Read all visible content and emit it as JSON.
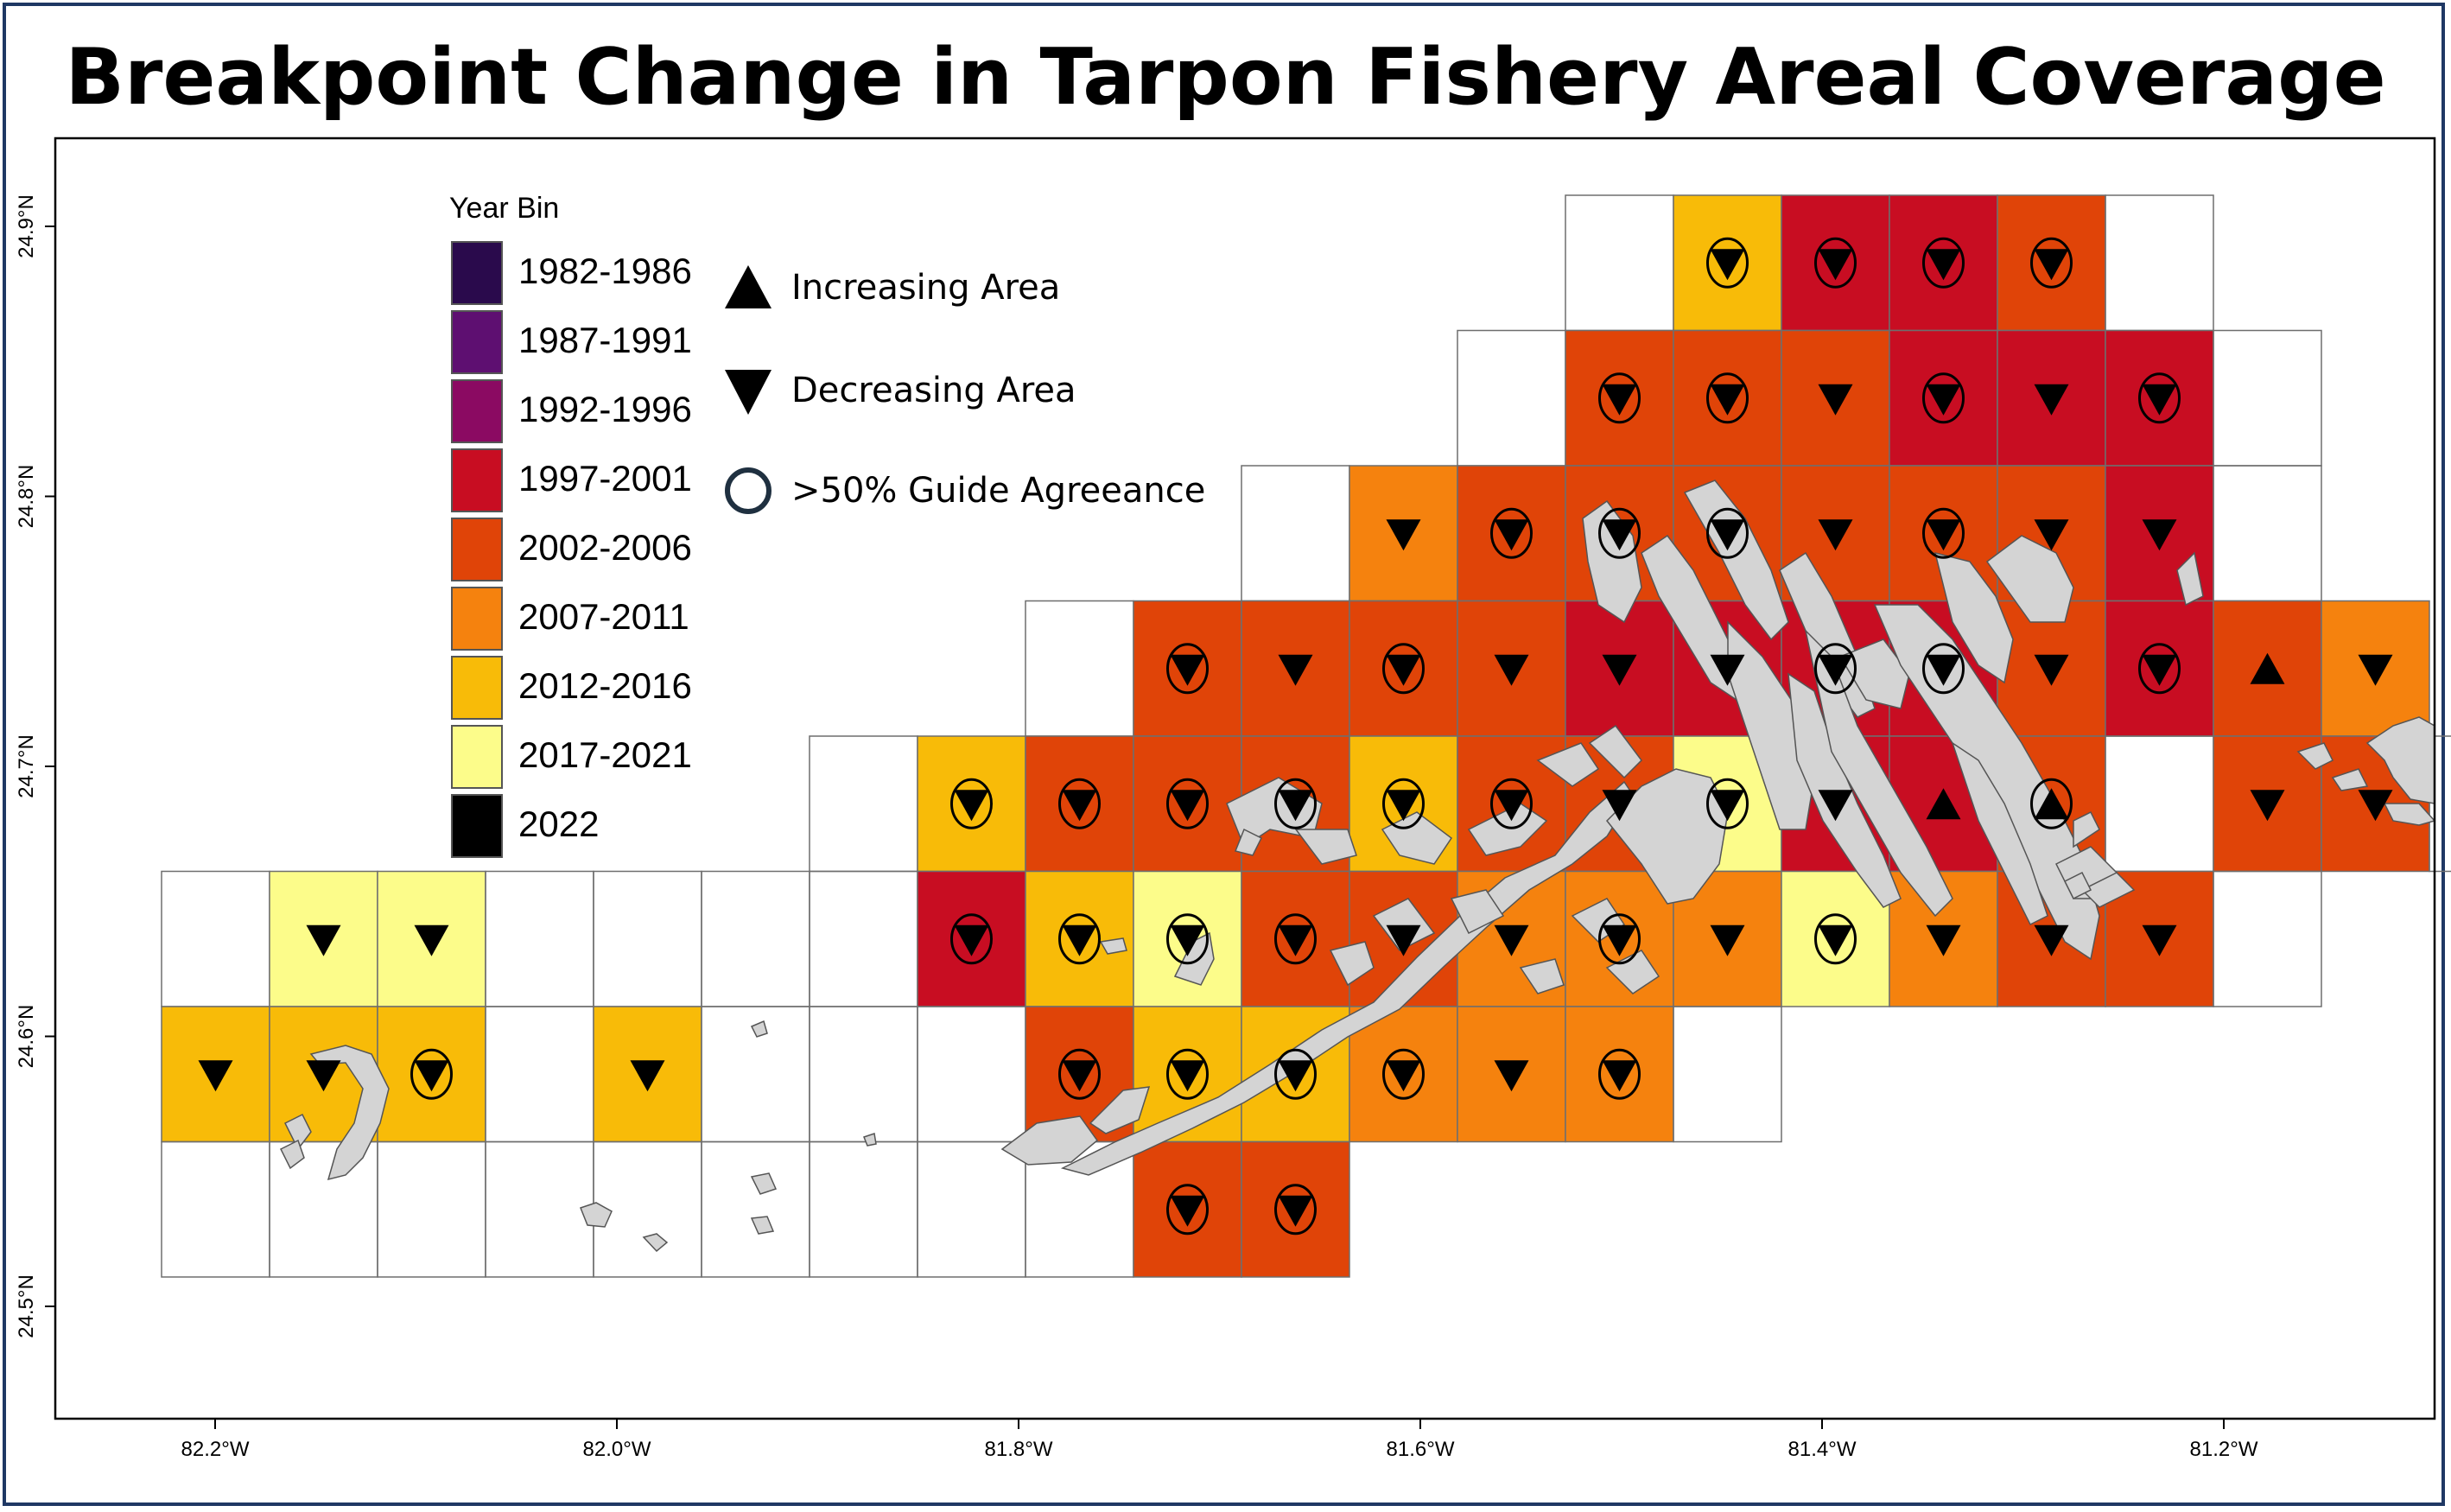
{
  "title": "Breakpoint Change in Tarpon Fishery Areal Coverage",
  "legend": {
    "title": "Year Bin",
    "bins": [
      {
        "label": "1982-1986",
        "color": "#2a0a4c"
      },
      {
        "label": "1987-1991",
        "color": "#5e0f71"
      },
      {
        "label": "1992-1996",
        "color": "#8b0a62"
      },
      {
        "label": "1997-2001",
        "color": "#c80d22"
      },
      {
        "label": "2002-2006",
        "color": "#e04408"
      },
      {
        "label": "2007-2011",
        "color": "#f5820e"
      },
      {
        "label": "2012-2016",
        "color": "#f8bb08"
      },
      {
        "label": "2017-2021",
        "color": "#fcfc8a"
      },
      {
        "label": "2022",
        "color": "#000000"
      }
    ],
    "symbols": [
      {
        "label": "Increasing Area",
        "icon": "triangle-up-icon"
      },
      {
        "label": "Decreasing Area",
        "icon": "triangle-down-icon"
      },
      {
        "label": ">50% Guide Agreeance",
        "icon": "circle-icon"
      }
    ]
  },
  "axes": {
    "x_ticks": [
      {
        "lon": -82.2,
        "label": "82.2°W"
      },
      {
        "lon": -82.0,
        "label": "82.0°W"
      },
      {
        "lon": -81.8,
        "label": "81.8°W"
      },
      {
        "lon": -81.6,
        "label": "81.6°W"
      },
      {
        "lon": -81.4,
        "label": "81.4°W"
      },
      {
        "lon": -81.2,
        "label": "81.2°W"
      }
    ],
    "y_ticks": [
      {
        "lat": 24.5,
        "label": "24.5°N"
      },
      {
        "lat": 24.6,
        "label": "24.6°N"
      },
      {
        "lat": 24.7,
        "label": "24.7°N"
      },
      {
        "lat": 24.8,
        "label": "24.8°N"
      },
      {
        "lat": 24.9,
        "label": "24.9°N"
      }
    ]
  },
  "grid": {
    "rows": [
      {
        "row": 0,
        "cells": [
          [
            13,
            "none",
            null,
            false
          ],
          [
            14,
            "2012-2016",
            "down",
            true
          ],
          [
            15,
            "1997-2001",
            "down",
            true
          ],
          [
            16,
            "1997-2001",
            "down",
            true
          ],
          [
            17,
            "2002-2006",
            "down",
            true
          ],
          [
            18,
            "none",
            null,
            false
          ]
        ]
      },
      {
        "row": 1,
        "cells": [
          [
            12,
            "none",
            null,
            false
          ],
          [
            13,
            "2002-2006",
            "down",
            true
          ],
          [
            14,
            "2002-2006",
            "down",
            true
          ],
          [
            15,
            "2002-2006",
            "down",
            false
          ],
          [
            16,
            "1997-2001",
            "down",
            true
          ],
          [
            17,
            "1997-2001",
            "down",
            false
          ],
          [
            18,
            "1997-2001",
            "down",
            true
          ],
          [
            19,
            "none",
            null,
            false
          ]
        ]
      },
      {
        "row": 2,
        "cells": [
          [
            10,
            "none",
            null,
            false
          ],
          [
            11,
            "2007-2011",
            "down",
            false
          ],
          [
            12,
            "2002-2006",
            "down",
            true
          ],
          [
            13,
            "2002-2006",
            "down",
            true
          ],
          [
            14,
            "2002-2006",
            "down",
            true
          ],
          [
            15,
            "2002-2006",
            "down",
            false
          ],
          [
            16,
            "2002-2006",
            "down",
            true
          ],
          [
            17,
            "2002-2006",
            "down",
            false
          ],
          [
            18,
            "1997-2001",
            "down",
            false
          ],
          [
            19,
            "none",
            null,
            false
          ]
        ]
      },
      {
        "row": 3,
        "cells": [
          [
            8,
            "none",
            null,
            false
          ],
          [
            9,
            "2002-2006",
            "down",
            true
          ],
          [
            10,
            "2002-2006",
            "down",
            false
          ],
          [
            11,
            "2002-2006",
            "down",
            true
          ],
          [
            12,
            "2002-2006",
            "down",
            false
          ],
          [
            13,
            "1997-2001",
            "down",
            false
          ],
          [
            14,
            "1997-2001",
            "down",
            false
          ],
          [
            15,
            "1997-2001",
            "down",
            true
          ],
          [
            16,
            "1997-2001",
            "down",
            true
          ],
          [
            17,
            "2002-2006",
            "down",
            false
          ],
          [
            18,
            "1997-2001",
            "down",
            true
          ],
          [
            19,
            "2002-2006",
            "up",
            false
          ],
          [
            20,
            "2007-2011",
            "down",
            false
          ]
        ]
      },
      {
        "row": 4,
        "cells": [
          [
            6,
            "none",
            null,
            false
          ],
          [
            7,
            "2012-2016",
            "down",
            true
          ],
          [
            8,
            "2002-2006",
            "down",
            true
          ],
          [
            9,
            "2002-2006",
            "down",
            true
          ],
          [
            10,
            "2002-2006",
            "down",
            true
          ],
          [
            11,
            "2012-2016",
            "down",
            true
          ],
          [
            12,
            "2002-2006",
            "down",
            true
          ],
          [
            13,
            "2002-2006",
            "down",
            false
          ],
          [
            14,
            "2017-2021",
            "down",
            true
          ],
          [
            15,
            "1997-2001",
            "down",
            false
          ],
          [
            16,
            "1997-2001",
            "up",
            false
          ],
          [
            17,
            "2002-2006",
            "up",
            true
          ],
          [
            18,
            "none",
            null,
            false
          ],
          [
            19,
            "2002-2006",
            "down",
            false
          ],
          [
            20,
            "2002-2006",
            "down",
            false
          ],
          [
            21,
            "none",
            null,
            false
          ]
        ]
      },
      {
        "row": 5,
        "cells": [
          [
            0,
            "none",
            null,
            false
          ],
          [
            1,
            "2017-2021",
            "down",
            false
          ],
          [
            2,
            "2017-2021",
            "down",
            false
          ],
          [
            3,
            "none",
            null,
            false
          ],
          [
            4,
            "none",
            null,
            false
          ],
          [
            5,
            "none",
            null,
            false
          ],
          [
            6,
            "none",
            null,
            false
          ],
          [
            7,
            "1997-2001",
            "down",
            true
          ],
          [
            8,
            "2012-2016",
            "down",
            true
          ],
          [
            9,
            "2017-2021",
            "down",
            true
          ],
          [
            10,
            "2002-2006",
            "down",
            true
          ],
          [
            11,
            "2002-2006",
            "down",
            false
          ],
          [
            12,
            "2007-2011",
            "down",
            false
          ],
          [
            13,
            "2007-2011",
            "down",
            true
          ],
          [
            14,
            "2007-2011",
            "down",
            false
          ],
          [
            15,
            "2017-2021",
            "down",
            true
          ],
          [
            16,
            "2007-2011",
            "down",
            false
          ],
          [
            17,
            "2002-2006",
            "down",
            false
          ],
          [
            18,
            "2002-2006",
            "down",
            false
          ],
          [
            19,
            "none",
            null,
            false
          ]
        ]
      },
      {
        "row": 6,
        "cells": [
          [
            0,
            "2012-2016",
            "down",
            false
          ],
          [
            1,
            "2012-2016",
            "down",
            false
          ],
          [
            2,
            "2012-2016",
            "down",
            true
          ],
          [
            3,
            "none",
            null,
            false
          ],
          [
            4,
            "2012-2016",
            "down",
            false
          ],
          [
            5,
            "none",
            null,
            false
          ],
          [
            6,
            "none",
            null,
            false
          ],
          [
            7,
            "none",
            null,
            false
          ],
          [
            8,
            "2002-2006",
            "down",
            true
          ],
          [
            9,
            "2012-2016",
            "down",
            true
          ],
          [
            10,
            "2012-2016",
            "down",
            true
          ],
          [
            11,
            "2007-2011",
            "down",
            true
          ],
          [
            12,
            "2007-2011",
            "down",
            false
          ],
          [
            13,
            "2007-2011",
            "down",
            true
          ],
          [
            14,
            "none",
            null,
            false
          ]
        ]
      },
      {
        "row": 7,
        "cells": [
          [
            0,
            "none",
            null,
            false
          ],
          [
            1,
            "none",
            null,
            false
          ],
          [
            2,
            "none",
            null,
            false
          ],
          [
            3,
            "none",
            null,
            false
          ],
          [
            4,
            "none",
            null,
            false
          ],
          [
            5,
            "none",
            null,
            false
          ],
          [
            6,
            "none",
            null,
            false
          ],
          [
            7,
            "none",
            null,
            false
          ],
          [
            8,
            "none",
            null,
            false
          ],
          [
            9,
            "2002-2006",
            "down",
            true
          ],
          [
            10,
            "2002-2006",
            "down",
            true
          ]
        ]
      }
    ]
  },
  "colors": {
    "land": "#d4d4d4",
    "land_outline": "#555555",
    "grid_line": "#6e6e6e",
    "frame": "#1f3864"
  }
}
